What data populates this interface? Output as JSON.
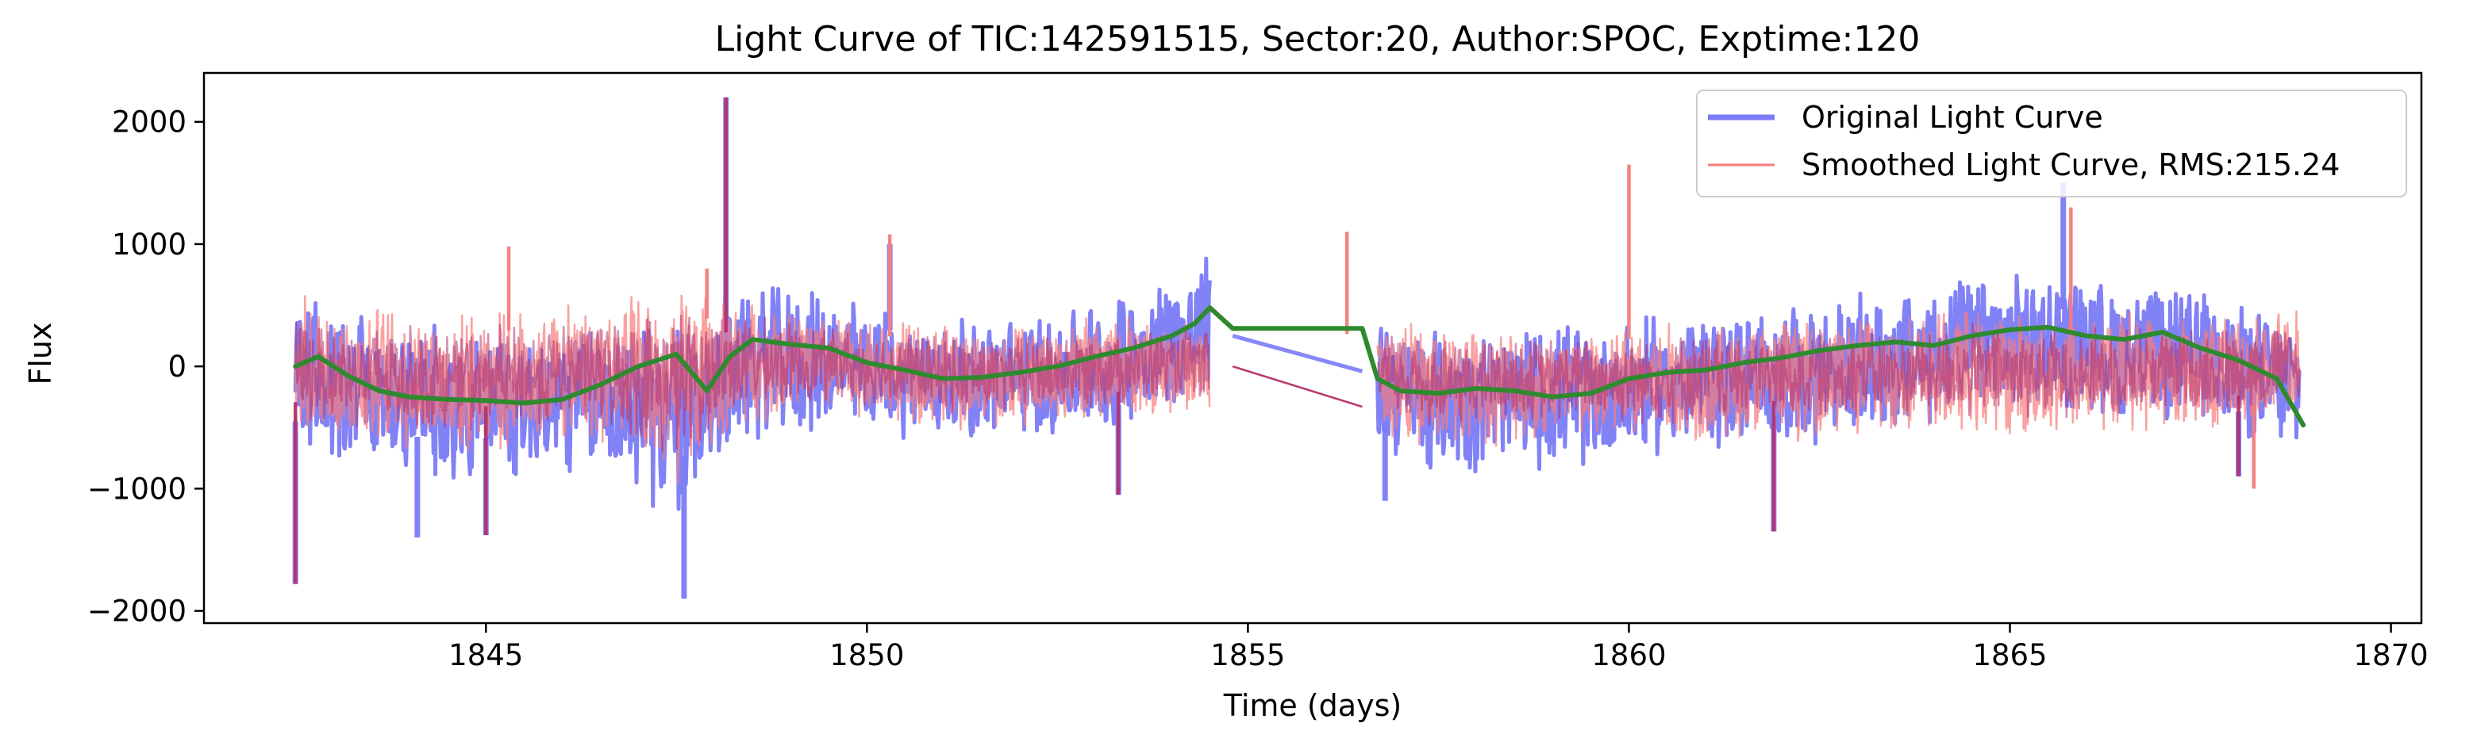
{
  "chart_data": {
    "type": "line",
    "title": "Light Curve of TIC:142591515, Sector:20, Author:SPOC, Exptime:120",
    "xlabel": "Time (days)",
    "ylabel": "Flux",
    "xlim": [
      1841.3,
      1870.4
    ],
    "ylim": [
      -2100,
      2400
    ],
    "x_ticks": [
      1845,
      1850,
      1855,
      1860,
      1865,
      1870
    ],
    "y_ticks": [
      -2000,
      -1000,
      0,
      1000,
      2000
    ],
    "x_tick_labels": [
      "1845",
      "1850",
      "1855",
      "1860",
      "1865",
      "1870"
    ],
    "y_tick_labels": [
      "−2000",
      "−1000",
      "0",
      "1000",
      "2000"
    ],
    "grid": false,
    "legend_position": "top-right",
    "gap": [
      1854.8,
      1856.5
    ],
    "colors": {
      "original": "#7b7bf7",
      "smoothed": "#f77b7b",
      "overlap": "#b03370",
      "trend": "#2f8a2f"
    },
    "series": [
      {
        "name": "Original Light Curve",
        "style": "thick-blue",
        "envelope": [
          {
            "x": 1842.5,
            "lo": -750,
            "hi": 700
          },
          {
            "x": 1843.5,
            "lo": -900,
            "hi": 500
          },
          {
            "x": 1844.5,
            "lo": -1000,
            "hi": 350
          },
          {
            "x": 1845.5,
            "lo": -950,
            "hi": 350
          },
          {
            "x": 1846.5,
            "lo": -900,
            "hi": 400
          },
          {
            "x": 1847.5,
            "lo": -1300,
            "hi": 400
          },
          {
            "x": 1848.3,
            "lo": -700,
            "hi": 700
          },
          {
            "x": 1849.5,
            "lo": -550,
            "hi": 650
          },
          {
            "x": 1850.5,
            "lo": -600,
            "hi": 450
          },
          {
            "x": 1851.5,
            "lo": -650,
            "hi": 400
          },
          {
            "x": 1852.5,
            "lo": -600,
            "hi": 500
          },
          {
            "x": 1853.5,
            "lo": -500,
            "hi": 650
          },
          {
            "x": 1854.5,
            "lo": -300,
            "hi": 950
          },
          {
            "x": 1856.7,
            "lo": -750,
            "hi": 500
          },
          {
            "x": 1857.5,
            "lo": -900,
            "hi": 350
          },
          {
            "x": 1858.5,
            "lo": -850,
            "hi": 350
          },
          {
            "x": 1859.5,
            "lo": -850,
            "hi": 400
          },
          {
            "x": 1860.5,
            "lo": -750,
            "hi": 450
          },
          {
            "x": 1861.5,
            "lo": -700,
            "hi": 500
          },
          {
            "x": 1862.5,
            "lo": -650,
            "hi": 550
          },
          {
            "x": 1863.5,
            "lo": -600,
            "hi": 650
          },
          {
            "x": 1864.5,
            "lo": -400,
            "hi": 750
          },
          {
            "x": 1865.5,
            "lo": -350,
            "hi": 800
          },
          {
            "x": 1866.5,
            "lo": -450,
            "hi": 700
          },
          {
            "x": 1867.5,
            "lo": -500,
            "hi": 650
          },
          {
            "x": 1868.8,
            "lo": -800,
            "hi": 400
          }
        ],
        "spikes": [
          {
            "x": 1842.5,
            "y": -1780
          },
          {
            "x": 1844.1,
            "y": -1400
          },
          {
            "x": 1845.0,
            "y": -1380
          },
          {
            "x": 1847.6,
            "y": -1900
          },
          {
            "x": 1848.15,
            "y": 2200
          },
          {
            "x": 1850.3,
            "y": 1000
          },
          {
            "x": 1853.3,
            "y": -1050
          },
          {
            "x": 1856.8,
            "y": -1100
          },
          {
            "x": 1861.9,
            "y": -1350
          },
          {
            "x": 1865.7,
            "y": 1500
          },
          {
            "x": 1868.0,
            "y": -900
          }
        ],
        "gap_bridge": [
          {
            "x": 1854.8,
            "y": 250
          },
          {
            "x": 1856.5,
            "y": -40
          }
        ]
      },
      {
        "name": "Smoothed Light Curve, RMS:215.24",
        "style": "thin-red",
        "envelope": [
          {
            "x": 1842.5,
            "lo": -650,
            "hi": 600
          },
          {
            "x": 1843.5,
            "lo": -700,
            "hi": 550
          },
          {
            "x": 1844.5,
            "lo": -750,
            "hi": 450
          },
          {
            "x": 1845.5,
            "lo": -700,
            "hi": 500
          },
          {
            "x": 1846.5,
            "lo": -650,
            "hi": 550
          },
          {
            "x": 1847.5,
            "lo": -1100,
            "hi": 700
          },
          {
            "x": 1848.3,
            "lo": -500,
            "hi": 600
          },
          {
            "x": 1849.5,
            "lo": -400,
            "hi": 450
          },
          {
            "x": 1850.5,
            "lo": -500,
            "hi": 400
          },
          {
            "x": 1851.5,
            "lo": -550,
            "hi": 350
          },
          {
            "x": 1852.5,
            "lo": -500,
            "hi": 400
          },
          {
            "x": 1853.5,
            "lo": -450,
            "hi": 450
          },
          {
            "x": 1854.5,
            "lo": -400,
            "hi": 400
          },
          {
            "x": 1856.7,
            "lo": -650,
            "hi": 450
          },
          {
            "x": 1857.5,
            "lo": -700,
            "hi": 350
          },
          {
            "x": 1858.5,
            "lo": -650,
            "hi": 350
          },
          {
            "x": 1859.5,
            "lo": -650,
            "hi": 350
          },
          {
            "x": 1860.5,
            "lo": -650,
            "hi": 400
          },
          {
            "x": 1861.5,
            "lo": -650,
            "hi": 400
          },
          {
            "x": 1862.5,
            "lo": -600,
            "hi": 450
          },
          {
            "x": 1863.5,
            "lo": -600,
            "hi": 450
          },
          {
            "x": 1864.5,
            "lo": -600,
            "hi": 500
          },
          {
            "x": 1865.5,
            "lo": -600,
            "hi": 450
          },
          {
            "x": 1866.5,
            "lo": -550,
            "hi": 500
          },
          {
            "x": 1867.5,
            "lo": -550,
            "hi": 450
          },
          {
            "x": 1868.8,
            "lo": -500,
            "hi": 500
          }
        ],
        "spikes": [
          {
            "x": 1842.5,
            "y": -1750
          },
          {
            "x": 1845.3,
            "y": 980
          },
          {
            "x": 1847.9,
            "y": 800
          },
          {
            "x": 1848.15,
            "y": 2100
          },
          {
            "x": 1850.3,
            "y": 1080
          },
          {
            "x": 1856.3,
            "y": 1100
          },
          {
            "x": 1860.0,
            "y": 1650
          },
          {
            "x": 1861.9,
            "y": -1300
          },
          {
            "x": 1865.8,
            "y": 1300
          },
          {
            "x": 1868.2,
            "y": -1000
          }
        ],
        "gap_bridge": [
          {
            "x": 1854.8,
            "y": 0
          },
          {
            "x": 1856.5,
            "y": -330
          }
        ]
      }
    ],
    "trend": {
      "x": [
        1842.5,
        1842.8,
        1843.2,
        1843.6,
        1844.0,
        1844.5,
        1845.0,
        1845.5,
        1846.0,
        1846.5,
        1847.0,
        1847.5,
        1847.9,
        1848.2,
        1848.5,
        1849.0,
        1849.5,
        1850.0,
        1850.5,
        1851.0,
        1851.5,
        1852.0,
        1852.5,
        1853.0,
        1853.5,
        1854.0,
        1854.3,
        1854.5,
        1854.8,
        1856.5,
        1856.7,
        1857.0,
        1857.5,
        1858.0,
        1858.5,
        1859.0,
        1859.5,
        1860.0,
        1860.5,
        1861.0,
        1861.5,
        1862.0,
        1862.5,
        1863.0,
        1863.5,
        1864.0,
        1864.5,
        1865.0,
        1865.5,
        1866.0,
        1866.5,
        1867.0,
        1867.5,
        1868.0,
        1868.5,
        1868.85
      ],
      "y": [
        0,
        80,
        -80,
        -200,
        -250,
        -270,
        -280,
        -300,
        -270,
        -150,
        0,
        100,
        -200,
        80,
        220,
        180,
        150,
        30,
        -30,
        -100,
        -90,
        -50,
        0,
        80,
        150,
        250,
        350,
        480,
        310,
        310,
        -100,
        -200,
        -220,
        -180,
        -200,
        -250,
        -220,
        -100,
        -50,
        -30,
        30,
        70,
        130,
        170,
        200,
        170,
        250,
        300,
        320,
        250,
        220,
        280,
        150,
        50,
        -100,
        -480
      ]
    }
  }
}
